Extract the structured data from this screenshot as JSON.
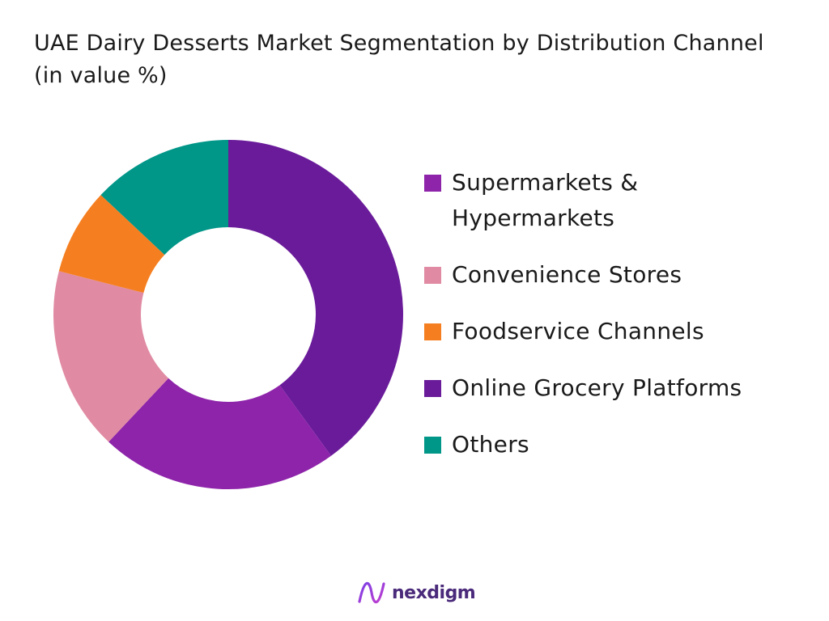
{
  "chart_data": {
    "type": "pie",
    "title": "UAE Dairy Desserts Market Segmentation by Distribution Channel (in value %)",
    "categories": [
      "Online Grocery Platforms",
      "Supermarkets & Hypermarkets",
      "Convenience Stores",
      "Foodservice Channels",
      "Others"
    ],
    "values": [
      40,
      22,
      17,
      8,
      13
    ],
    "colors": [
      "#6a1b9a",
      "#8e24aa",
      "#e08ba3",
      "#f57f20",
      "#009688"
    ],
    "donut": true,
    "legend": {
      "position": "right",
      "entries": [
        {
          "label": "Supermarkets & Hypermarkets",
          "color": "#8e24aa"
        },
        {
          "label": "Convenience Stores",
          "color": "#e08ba3"
        },
        {
          "label": "Foodservice Channels",
          "color": "#f57f20"
        },
        {
          "label": "Online Grocery Platforms",
          "color": "#6a1b9a"
        },
        {
          "label": "Others",
          "color": "#009688"
        }
      ]
    }
  },
  "brand": {
    "logo_text": "nexdigm",
    "logo_icon": "nexdigm-logo-icon",
    "colors": [
      "#7b3fe4",
      "#c13fd0",
      "#4a2a7a"
    ]
  }
}
